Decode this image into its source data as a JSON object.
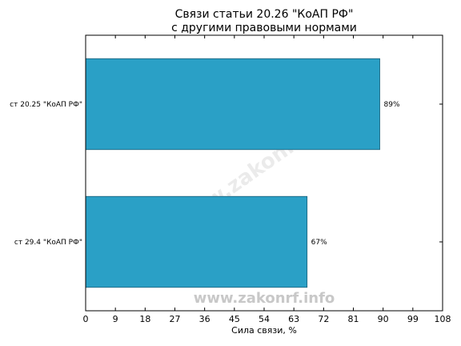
{
  "chart_data": {
    "type": "bar",
    "orientation": "horizontal",
    "title_line1": "Связи статьи 20.26 \"КоАП РФ\"",
    "title_line2": "с другими правовыми нормами",
    "xlabel": "Сила связи, %",
    "ylabel": "",
    "categories": [
      "ст 20.25 \"КоАП РФ\"",
      "ст 29.4 \"КоАП РФ\""
    ],
    "values": [
      89,
      67
    ],
    "data_labels": [
      "89%",
      "67%"
    ],
    "xlim": [
      0,
      108
    ],
    "xticks": [
      0,
      9,
      18,
      27,
      36,
      45,
      54,
      63,
      72,
      81,
      90,
      99,
      108
    ],
    "grid": false,
    "bar_color": "#2aa0c6",
    "bar_edge_color": "#1a5f78"
  },
  "watermark": {
    "bottom_text": "www.zakonrf.info",
    "diagonal_text": "www.zakonrf.info"
  }
}
